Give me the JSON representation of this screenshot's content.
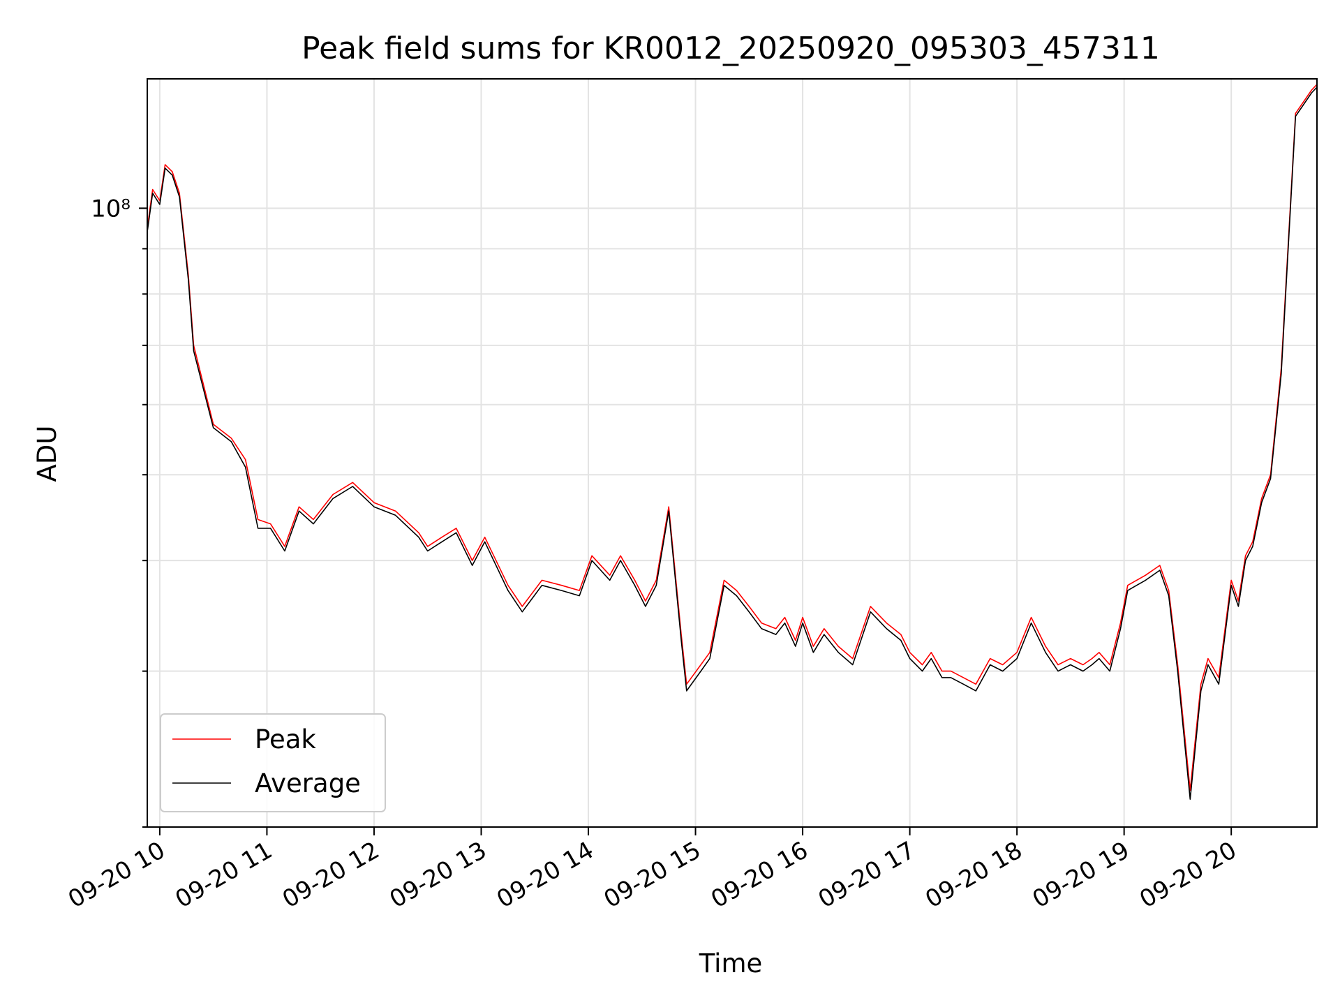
{
  "chart_data": {
    "type": "line",
    "title": "Peak field sums for KR0012_20250920_095303_457311",
    "xlabel": "Time",
    "ylabel": "ADU",
    "y_scale": "log",
    "ylim": [
      20000000,
      140000000
    ],
    "y_tick_label": "10⁸",
    "y_tick_value": 100000000,
    "xlim": [
      "2025-09-20 09:53",
      "2025-09-20 20:48"
    ],
    "x_tick_labels": [
      "09-20 10",
      "09-20 11",
      "09-20 12",
      "09-20 13",
      "09-20 14",
      "09-20 15",
      "09-20 16",
      "09-20 17",
      "09-20 18",
      "09-20 19",
      "09-20 20"
    ],
    "x_tick_times": [
      "2025-09-20 10:00",
      "2025-09-20 11:00",
      "2025-09-20 12:00",
      "2025-09-20 13:00",
      "2025-09-20 14:00",
      "2025-09-20 15:00",
      "2025-09-20 16:00",
      "2025-09-20 17:00",
      "2025-09-20 18:00",
      "2025-09-20 19:00",
      "2025-09-20 20:00"
    ],
    "grid": true,
    "legend_position": "lower-left",
    "series": [
      {
        "name": "Peak",
        "color": "#ff0000",
        "x": [
          "2025-09-20 09:53",
          "2025-09-20 09:56",
          "2025-09-20 10:00",
          "2025-09-20 10:03",
          "2025-09-20 10:07",
          "2025-09-20 10:11",
          "2025-09-20 10:16",
          "2025-09-20 10:19",
          "2025-09-20 10:30",
          "2025-09-20 10:40",
          "2025-09-20 10:48",
          "2025-09-20 10:55",
          "2025-09-20 11:02",
          "2025-09-20 11:10",
          "2025-09-20 11:18",
          "2025-09-20 11:26",
          "2025-09-20 11:37",
          "2025-09-20 11:48",
          "2025-09-20 12:00",
          "2025-09-20 12:12",
          "2025-09-20 12:25",
          "2025-09-20 12:30",
          "2025-09-20 12:38",
          "2025-09-20 12:46",
          "2025-09-20 12:55",
          "2025-09-20 13:02",
          "2025-09-20 13:15",
          "2025-09-20 13:23",
          "2025-09-20 13:34",
          "2025-09-20 13:45",
          "2025-09-20 13:55",
          "2025-09-20 14:02",
          "2025-09-20 14:12",
          "2025-09-20 14:18",
          "2025-09-20 14:26",
          "2025-09-20 14:32",
          "2025-09-20 14:38",
          "2025-09-20 14:45",
          "2025-09-20 14:52",
          "2025-09-20 14:55",
          "2025-09-20 15:03",
          "2025-09-20 15:08",
          "2025-09-20 15:16",
          "2025-09-20 15:23",
          "2025-09-20 15:30",
          "2025-09-20 15:37",
          "2025-09-20 15:45",
          "2025-09-20 15:50",
          "2025-09-20 15:56",
          "2025-09-20 16:00",
          "2025-09-20 16:06",
          "2025-09-20 16:12",
          "2025-09-20 16:20",
          "2025-09-20 16:28",
          "2025-09-20 16:38",
          "2025-09-20 16:47",
          "2025-09-20 16:55",
          "2025-09-20 17:00",
          "2025-09-20 17:07",
          "2025-09-20 17:12",
          "2025-09-20 17:18",
          "2025-09-20 17:23",
          "2025-09-20 17:30",
          "2025-09-20 17:37",
          "2025-09-20 17:45",
          "2025-09-20 17:52",
          "2025-09-20 18:00",
          "2025-09-20 18:08",
          "2025-09-20 18:16",
          "2025-09-20 18:23",
          "2025-09-20 18:30",
          "2025-09-20 18:37",
          "2025-09-20 18:42",
          "2025-09-20 18:46",
          "2025-09-20 18:52",
          "2025-09-20 18:58",
          "2025-09-20 19:02",
          "2025-09-20 19:07",
          "2025-09-20 19:12",
          "2025-09-20 19:20",
          "2025-09-20 19:25",
          "2025-09-20 19:30",
          "2025-09-20 19:37",
          "2025-09-20 19:43",
          "2025-09-20 19:47",
          "2025-09-20 19:53",
          "2025-09-20 20:00",
          "2025-09-20 20:04",
          "2025-09-20 20:08",
          "2025-09-20 20:12",
          "2025-09-20 20:17",
          "2025-09-20 20:22",
          "2025-09-20 20:28",
          "2025-09-20 20:36",
          "2025-09-20 20:45",
          "2025-09-20 20:48"
        ],
        "values": [
          95000000,
          105000000,
          102000000,
          112000000,
          110000000,
          104000000,
          84000000,
          70000000,
          57000000,
          55000000,
          52000000,
          44500000,
          44000000,
          41500000,
          46000000,
          44500000,
          47500000,
          49000000,
          46500000,
          45500000,
          43000000,
          41500000,
          42500000,
          43500000,
          40000000,
          42500000,
          37500000,
          35500000,
          38000000,
          37500000,
          37000000,
          40500000,
          38500000,
          40500000,
          38000000,
          36000000,
          38000000,
          46000000,
          33000000,
          29000000,
          30500000,
          31500000,
          38000000,
          37000000,
          35500000,
          34000000,
          33500000,
          34500000,
          32500000,
          34500000,
          32000000,
          33500000,
          32000000,
          31000000,
          35500000,
          34000000,
          33000000,
          31500000,
          30500000,
          31500000,
          30000000,
          30000000,
          29500000,
          29000000,
          31000000,
          30500000,
          31500000,
          34500000,
          32000000,
          30500000,
          31000000,
          30500000,
          31000000,
          31500000,
          30500000,
          34000000,
          37500000,
          38000000,
          38500000,
          39500000,
          37000000,
          30500000,
          22000000,
          29000000,
          31000000,
          29500000,
          38000000,
          36000000,
          40500000,
          42000000,
          47000000,
          50000000,
          66000000,
          128000000,
          136000000,
          138000000
        ]
      },
      {
        "name": "Average",
        "color": "#000000",
        "x": [
          "2025-09-20 09:53",
          "2025-09-20 09:56",
          "2025-09-20 10:00",
          "2025-09-20 10:03",
          "2025-09-20 10:07",
          "2025-09-20 10:11",
          "2025-09-20 10:16",
          "2025-09-20 10:19",
          "2025-09-20 10:30",
          "2025-09-20 10:40",
          "2025-09-20 10:48",
          "2025-09-20 10:55",
          "2025-09-20 11:02",
          "2025-09-20 11:10",
          "2025-09-20 11:18",
          "2025-09-20 11:26",
          "2025-09-20 11:37",
          "2025-09-20 11:48",
          "2025-09-20 12:00",
          "2025-09-20 12:12",
          "2025-09-20 12:25",
          "2025-09-20 12:30",
          "2025-09-20 12:38",
          "2025-09-20 12:46",
          "2025-09-20 12:55",
          "2025-09-20 13:02",
          "2025-09-20 13:15",
          "2025-09-20 13:23",
          "2025-09-20 13:34",
          "2025-09-20 13:45",
          "2025-09-20 13:55",
          "2025-09-20 14:02",
          "2025-09-20 14:12",
          "2025-09-20 14:18",
          "2025-09-20 14:26",
          "2025-09-20 14:32",
          "2025-09-20 14:38",
          "2025-09-20 14:45",
          "2025-09-20 14:52",
          "2025-09-20 14:55",
          "2025-09-20 15:03",
          "2025-09-20 15:08",
          "2025-09-20 15:16",
          "2025-09-20 15:23",
          "2025-09-20 15:30",
          "2025-09-20 15:37",
          "2025-09-20 15:45",
          "2025-09-20 15:50",
          "2025-09-20 15:56",
          "2025-09-20 16:00",
          "2025-09-20 16:06",
          "2025-09-20 16:12",
          "2025-09-20 16:20",
          "2025-09-20 16:28",
          "2025-09-20 16:38",
          "2025-09-20 16:47",
          "2025-09-20 16:55",
          "2025-09-20 17:00",
          "2025-09-20 17:07",
          "2025-09-20 17:12",
          "2025-09-20 17:18",
          "2025-09-20 17:23",
          "2025-09-20 17:30",
          "2025-09-20 17:37",
          "2025-09-20 17:45",
          "2025-09-20 17:52",
          "2025-09-20 18:00",
          "2025-09-20 18:08",
          "2025-09-20 18:16",
          "2025-09-20 18:23",
          "2025-09-20 18:30",
          "2025-09-20 18:37",
          "2025-09-20 18:42",
          "2025-09-20 18:46",
          "2025-09-20 18:52",
          "2025-09-20 18:58",
          "2025-09-20 19:02",
          "2025-09-20 19:07",
          "2025-09-20 19:12",
          "2025-09-20 19:20",
          "2025-09-20 19:25",
          "2025-09-20 19:30",
          "2025-09-20 19:37",
          "2025-09-20 19:43",
          "2025-09-20 19:47",
          "2025-09-20 19:53",
          "2025-09-20 20:00",
          "2025-09-20 20:04",
          "2025-09-20 20:08",
          "2025-09-20 20:12",
          "2025-09-20 20:17",
          "2025-09-20 20:22",
          "2025-09-20 20:28",
          "2025-09-20 20:36",
          "2025-09-20 20:45",
          "2025-09-20 20:48"
        ],
        "values": [
          94000000,
          104000000,
          101000000,
          111000000,
          109000000,
          103000000,
          83000000,
          69000000,
          56500000,
          54500000,
          51000000,
          43500000,
          43500000,
          41000000,
          45500000,
          44000000,
          47000000,
          48500000,
          46000000,
          45000000,
          42500000,
          41000000,
          42000000,
          43000000,
          39500000,
          42000000,
          37000000,
          35000000,
          37500000,
          37000000,
          36500000,
          40000000,
          38000000,
          40000000,
          37500000,
          35500000,
          37500000,
          45500000,
          32500000,
          28500000,
          30000000,
          31000000,
          37500000,
          36500000,
          35000000,
          33500000,
          33000000,
          34000000,
          32000000,
          34000000,
          31500000,
          33000000,
          31500000,
          30500000,
          35000000,
          33500000,
          32500000,
          31000000,
          30000000,
          31000000,
          29500000,
          29500000,
          29000000,
          28500000,
          30500000,
          30000000,
          31000000,
          34000000,
          31500000,
          30000000,
          30500000,
          30000000,
          30500000,
          31000000,
          30000000,
          33500000,
          37000000,
          37500000,
          38000000,
          39000000,
          36500000,
          30000000,
          21500000,
          28500000,
          30500000,
          29000000,
          37500000,
          35500000,
          40000000,
          41500000,
          46500000,
          49500000,
          65000000,
          127000000,
          135000000,
          137000000
        ]
      }
    ]
  }
}
